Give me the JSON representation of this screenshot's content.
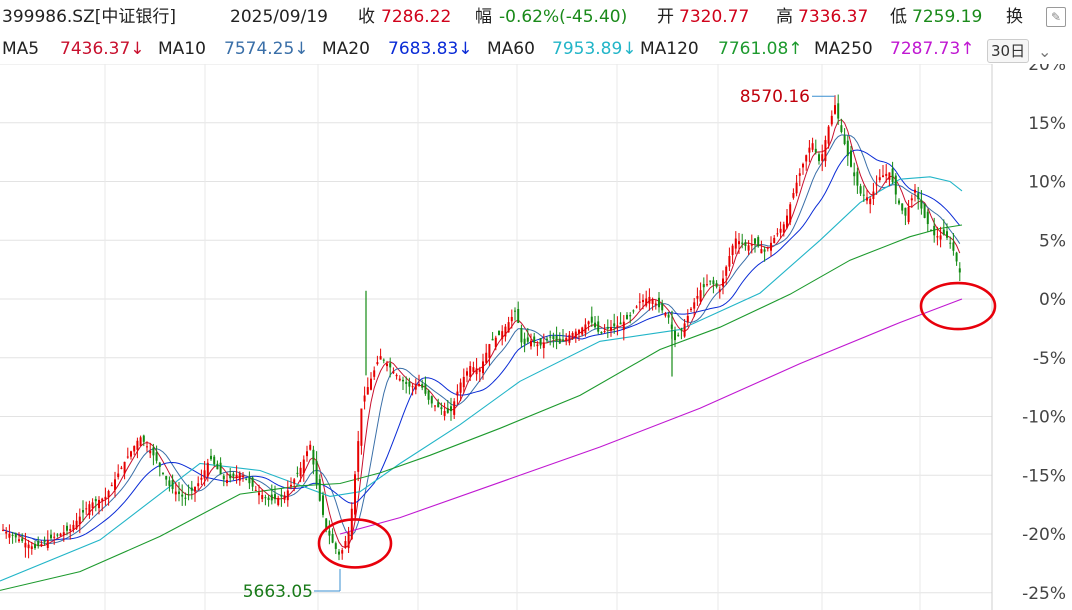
{
  "header": {
    "code": "399986.SZ[中证银行]",
    "date": "2025/09/19",
    "close_label": "收",
    "close_value": "7286.22",
    "change_label": "幅",
    "change_value": "-0.62%(-45.40)",
    "open_label": "开",
    "open_value": "7320.77",
    "high_label": "高",
    "high_value": "7336.37",
    "low_label": "低",
    "low_value": "7259.19",
    "turnover_label": "换"
  },
  "ma": {
    "ma5_label": "MA5",
    "ma5_value": "7436.37↓",
    "ma10_label": "MA10",
    "ma10_value": "7574.25↓",
    "ma20_label": "MA20",
    "ma20_value": "7683.83↓",
    "ma60_label": "MA60",
    "ma60_value": "7953.89↓",
    "ma120_label": "MA120",
    "ma120_value": "7761.08↑",
    "ma250_label": "MA250",
    "ma250_value": "7287.73↑",
    "period_label": "30日"
  },
  "icons": [
    "edit-icon",
    "chevron-down-icon"
  ],
  "colors": {
    "up": "#e60000",
    "down": "#138a13",
    "ma5": "#c8102e",
    "ma10": "#3a6fa8",
    "ma20": "#0a2bd6",
    "ma60": "#22b5c8",
    "ma120": "#1d9a2e",
    "ma250": "#c018d2",
    "circle": "#e8000b"
  },
  "chart_data": {
    "type": "candlestick",
    "y_axis": {
      "unit": "%",
      "ylim": [
        -25,
        20
      ],
      "ticks": [
        "20%",
        "15%",
        "10%",
        "5%",
        "0%",
        "-5%",
        "-10%",
        "-15%",
        "-20%",
        "-25%"
      ]
    },
    "grid": true,
    "annotations": {
      "high_label": "8570.16",
      "high_pct": 17.6,
      "low_label": "5663.05",
      "low_pct": -22.3,
      "circles": [
        "low",
        "last"
      ]
    },
    "close_path_pct": [
      [
        0,
        -19.5
      ],
      [
        20,
        -20.5
      ],
      [
        35,
        -21.2
      ],
      [
        50,
        -20.4
      ],
      [
        70,
        -19.6
      ],
      [
        90,
        -17.4
      ],
      [
        105,
        -16.9
      ],
      [
        125,
        -13.8
      ],
      [
        140,
        -11.7
      ],
      [
        155,
        -13.5
      ],
      [
        170,
        -16.0
      ],
      [
        185,
        -17.0
      ],
      [
        200,
        -15.5
      ],
      [
        210,
        -13.5
      ],
      [
        225,
        -15.5
      ],
      [
        240,
        -14.8
      ],
      [
        255,
        -16.2
      ],
      [
        270,
        -17.2
      ],
      [
        285,
        -16.7
      ],
      [
        300,
        -14.5
      ],
      [
        310,
        -12.3
      ],
      [
        318,
        -16.5
      ],
      [
        326,
        -19.5
      ],
      [
        334,
        -21.0
      ],
      [
        340,
        -21.9
      ],
      [
        350,
        -19.5
      ],
      [
        356,
        -14.0
      ],
      [
        362,
        -8.8
      ],
      [
        370,
        -7.0
      ],
      [
        380,
        -4.8
      ],
      [
        390,
        -5.8
      ],
      [
        400,
        -6.8
      ],
      [
        410,
        -7.5
      ],
      [
        420,
        -7.2
      ],
      [
        430,
        -8.8
      ],
      [
        440,
        -9.3
      ],
      [
        450,
        -9.8
      ],
      [
        460,
        -7.2
      ],
      [
        470,
        -5.7
      ],
      [
        480,
        -6.0
      ],
      [
        490,
        -3.7
      ],
      [
        500,
        -3.0
      ],
      [
        510,
        -1.8
      ],
      [
        516,
        -0.9
      ],
      [
        522,
        -4.0
      ],
      [
        530,
        -3.5
      ],
      [
        540,
        -4.0
      ],
      [
        550,
        -3.2
      ],
      [
        560,
        -3.8
      ],
      [
        570,
        -3.0
      ],
      [
        580,
        -2.6
      ],
      [
        590,
        -1.8
      ],
      [
        600,
        -3.0
      ],
      [
        610,
        -2.4
      ],
      [
        620,
        -2.2
      ],
      [
        630,
        -1.5
      ],
      [
        640,
        -0.2
      ],
      [
        650,
        0.2
      ],
      [
        660,
        -0.8
      ],
      [
        668,
        -1.4
      ],
      [
        675,
        -3.5
      ],
      [
        682,
        -2.6
      ],
      [
        690,
        -1.0
      ],
      [
        700,
        0.7
      ],
      [
        710,
        1.5
      ],
      [
        720,
        0.8
      ],
      [
        727,
        3.0
      ],
      [
        735,
        5.2
      ],
      [
        745,
        4.5
      ],
      [
        755,
        4.7
      ],
      [
        765,
        4.0
      ],
      [
        775,
        5.3
      ],
      [
        785,
        6.5
      ],
      [
        795,
        9.5
      ],
      [
        805,
        12.0
      ],
      [
        812,
        13.4
      ],
      [
        820,
        11.5
      ],
      [
        828,
        14.5
      ],
      [
        835,
        16.5
      ],
      [
        842,
        14.0
      ],
      [
        850,
        11.5
      ],
      [
        860,
        9.0
      ],
      [
        870,
        8.5
      ],
      [
        880,
        10.4
      ],
      [
        890,
        10.8
      ],
      [
        897,
        8.5
      ],
      [
        905,
        7.0
      ],
      [
        915,
        9.3
      ],
      [
        925,
        6.8
      ],
      [
        935,
        5.3
      ],
      [
        945,
        5.5
      ],
      [
        952,
        4.5
      ],
      [
        958,
        2.8
      ],
      [
        963,
        1.3
      ]
    ],
    "ma_paths_pct": {
      "ma60": [
        [
          0,
          -24.0
        ],
        [
          100,
          -20.5
        ],
        [
          200,
          -14.0
        ],
        [
          260,
          -14.6
        ],
        [
          330,
          -16.8
        ],
        [
          360,
          -16.4
        ],
        [
          400,
          -14.0
        ],
        [
          460,
          -10.7
        ],
        [
          520,
          -7.0
        ],
        [
          600,
          -3.6
        ],
        [
          680,
          -2.6
        ],
        [
          760,
          0.5
        ],
        [
          820,
          5.0
        ],
        [
          860,
          8.2
        ],
        [
          900,
          10.2
        ],
        [
          930,
          10.4
        ],
        [
          950,
          10.0
        ],
        [
          962,
          9.2
        ]
      ],
      "ma120": [
        [
          0,
          -24.8
        ],
        [
          80,
          -23.2
        ],
        [
          160,
          -20.2
        ],
        [
          240,
          -16.6
        ],
        [
          300,
          -15.9
        ],
        [
          340,
          -15.7
        ],
        [
          380,
          -14.8
        ],
        [
          430,
          -13.3
        ],
        [
          500,
          -11.0
        ],
        [
          580,
          -8.2
        ],
        [
          660,
          -4.3
        ],
        [
          720,
          -2.4
        ],
        [
          790,
          0.4
        ],
        [
          850,
          3.3
        ],
        [
          910,
          5.3
        ],
        [
          940,
          6.0
        ],
        [
          962,
          6.3
        ]
      ],
      "ma250": [
        [
          340,
          -20.0
        ],
        [
          400,
          -18.6
        ],
        [
          500,
          -15.6
        ],
        [
          600,
          -12.6
        ],
        [
          700,
          -9.3
        ],
        [
          800,
          -5.5
        ],
        [
          900,
          -2.0
        ],
        [
          962,
          0.0
        ]
      ]
    }
  }
}
